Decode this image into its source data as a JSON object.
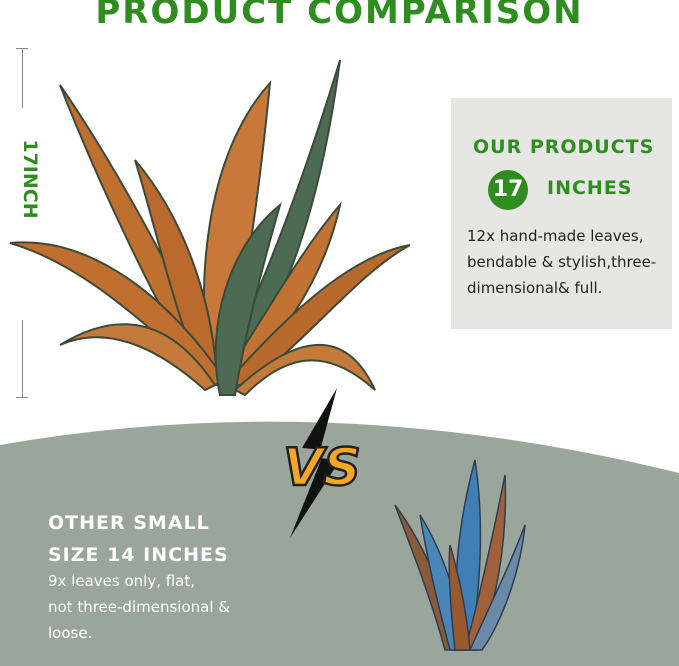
{
  "title": "PRODUCT COMPARISON",
  "ruler_label": "17INCH",
  "ours": {
    "heading": "OUR PRODUCTS",
    "size_number": "17",
    "size_unit": "INCHES",
    "description": "12x hand-made leaves, bendable & stylish,three-dimensional& full."
  },
  "vs_label": "VS",
  "other": {
    "heading_line1": "OTHER SMALL",
    "heading_line2": "SIZE 14 INCHES",
    "description_line1": "9x leaves only, flat,",
    "description_line2": "not three-dimensional &",
    "description_line3": "loose."
  },
  "colors": {
    "brand_green": "#2f8d1f",
    "panel_gray": "#e6e7e5",
    "bottom_sage": "#9aa59b",
    "vs_orange": "#f5a623"
  }
}
